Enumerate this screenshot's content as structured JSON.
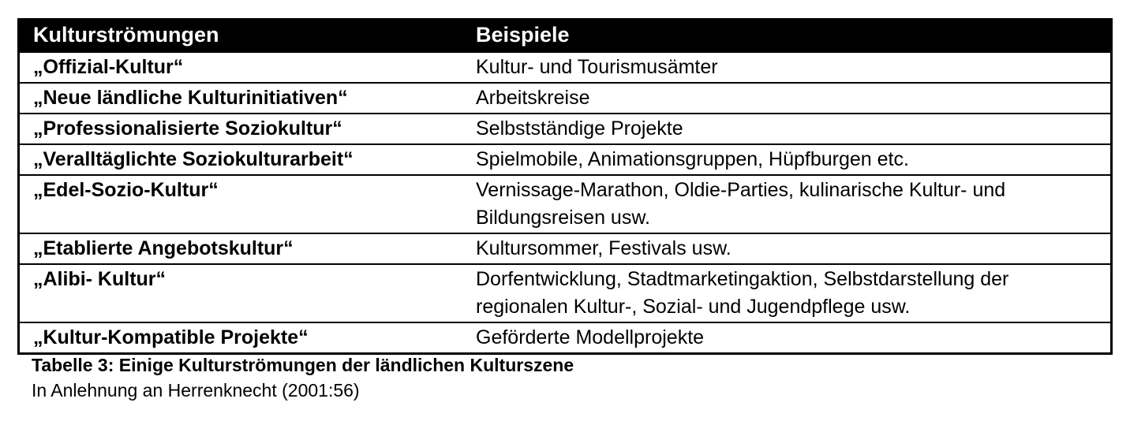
{
  "table": {
    "headers": [
      "Kulturströmungen",
      "Beispiele"
    ],
    "rows": [
      [
        "„Offizial-Kultur“",
        "Kultur- und Tourismusämter"
      ],
      [
        "„Neue ländliche Kulturinitiativen“",
        "Arbeitskreise"
      ],
      [
        "„Professionalisierte Soziokultur“",
        "Selbstständige Projekte"
      ],
      [
        "„Veralltäglichte Soziokulturarbeit“",
        "Spielmobile, Animationsgruppen, Hüpfburgen etc."
      ],
      [
        "„Edel-Sozio-Kultur“",
        "Vernissage-Marathon, Oldie-Parties, kulinarische Kultur- und Bildungsreisen usw."
      ],
      [
        "„Etablierte Angebotskultur“",
        "Kultursommer, Festivals usw."
      ],
      [
        "„Alibi- Kultur“",
        "Dorfentwicklung, Stadtmarketingaktion, Selbstdarstellung der regionalen Kultur-, Sozial- und Jugendpflege usw."
      ],
      [
        "„Kultur-Kompatible Projekte“",
        "Geförderte Modellprojekte"
      ]
    ]
  },
  "caption": "Tabelle 3: Einige Kulturströmungen der ländlichen Kulturszene",
  "source": "In Anlehnung an Herrenknecht (2001:56)"
}
